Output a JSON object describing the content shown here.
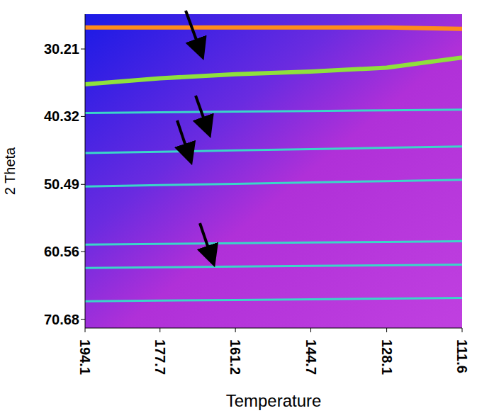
{
  "chart_data": {
    "type": "line",
    "x_label": "Temperature",
    "y_label": "2 Theta",
    "x": [
      194.1,
      177.7,
      161.2,
      144.7,
      128.1,
      111.6
    ],
    "xlim": [
      194.1,
      111.6
    ],
    "xticks": [
      194.1,
      177.7,
      161.2,
      144.7,
      128.1,
      111.6
    ],
    "ylim": [
      25,
      72
    ],
    "yticks": [
      30.21,
      40.32,
      50.49,
      60.56,
      70.68
    ],
    "grid": false,
    "series": [
      {
        "color": "#ff8c1a",
        "values": [
          27.0,
          27.0,
          27.0,
          27.0,
          27.0,
          27.2
        ]
      },
      {
        "color": "#8fe03c",
        "values": [
          35.5,
          34.6,
          34.0,
          33.6,
          33.0,
          31.5
        ]
      },
      {
        "color": "#3ad6c8",
        "values": [
          39.8,
          39.7,
          39.6,
          39.5,
          39.4,
          39.3
        ]
      },
      {
        "color": "#3ad6c8",
        "values": [
          45.8,
          45.6,
          45.4,
          45.2,
          45.0,
          44.8
        ]
      },
      {
        "color": "#3ad6c8",
        "values": [
          50.8,
          50.6,
          50.4,
          50.2,
          50.0,
          49.8
        ]
      },
      {
        "color": "#3ad6c8",
        "values": [
          59.5,
          59.4,
          59.3,
          59.2,
          59.1,
          59.0
        ]
      },
      {
        "color": "#3ad6c8",
        "values": [
          63.0,
          62.9,
          62.8,
          62.7,
          62.6,
          62.5
        ]
      },
      {
        "color": "#3ad6c8",
        "values": [
          68.0,
          67.9,
          67.8,
          67.7,
          67.6,
          67.5
        ]
      }
    ]
  }
}
